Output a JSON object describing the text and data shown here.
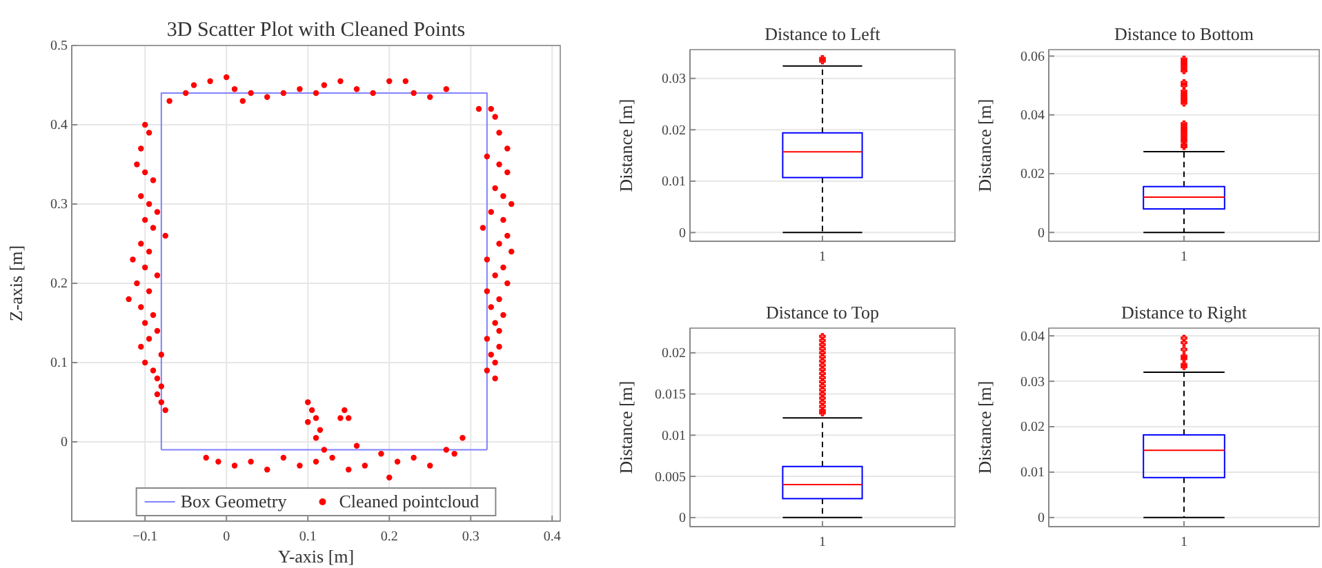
{
  "chart_data": [
    {
      "type": "scatter",
      "title": "3D Scatter Plot with Cleaned Points",
      "xlabel": "Y-axis [m]",
      "ylabel": "Z-axis [m]",
      "xlim": [
        -0.19,
        0.41
      ],
      "xticks": [
        {
          "value": -0.1,
          "label": "−0.1"
        },
        0,
        0.1,
        0.2,
        0.3,
        0.4
      ],
      "ylim": [
        -0.1,
        0.5
      ],
      "yticks": [
        0,
        0.1,
        0.2,
        0.3,
        0.4,
        0.5
      ],
      "grid": true,
      "legend": "bottom",
      "series": [
        {
          "name": "Box Geometry",
          "type": "line",
          "color": "#8080ff",
          "line_style": "solid",
          "x": [
            -0.08,
            -0.08,
            0.32,
            0.32
          ],
          "values": [
            -0.01,
            0.44,
            0.44,
            -0.01
          ]
        },
        {
          "type": "line",
          "color": "#8080ff",
          "line_style": "solid",
          "x": [
            -0.08,
            0.32
          ],
          "values": [
            -0.01,
            -0.01
          ]
        },
        {
          "name": "Cleaned pointcloud",
          "color": "#ff0000",
          "marker": "circle",
          "x": [
            -0.1,
            -0.095,
            -0.105,
            -0.11,
            -0.1,
            -0.09,
            -0.105,
            -0.095,
            -0.085,
            -0.1,
            -0.09,
            -0.075,
            -0.105,
            -0.095,
            -0.115,
            -0.1,
            -0.085,
            -0.11,
            -0.095,
            -0.12,
            -0.105,
            -0.09,
            -0.1,
            -0.085,
            -0.095,
            -0.105,
            -0.08,
            -0.1,
            -0.09,
            -0.085,
            -0.08,
            -0.085,
            -0.08,
            -0.075,
            0.31,
            0.325,
            0.33,
            0.335,
            0.345,
            0.32,
            0.335,
            0.345,
            0.33,
            0.34,
            0.35,
            0.325,
            0.34,
            0.315,
            0.345,
            0.335,
            0.35,
            0.32,
            0.34,
            0.33,
            0.345,
            0.32,
            0.335,
            0.325,
            0.34,
            0.33,
            0.335,
            0.32,
            0.335,
            0.325,
            0.33,
            0.32,
            0.33,
            -0.07,
            -0.05,
            -0.04,
            -0.02,
            0,
            0.01,
            0.03,
            0.05,
            0.07,
            0.09,
            0.11,
            0.12,
            0.14,
            0.16,
            0.18,
            0.2,
            0.22,
            0.23,
            0.25,
            0.27,
            0.02,
            -0.025,
            -0.01,
            0.01,
            0.03,
            0.05,
            0.07,
            0.09,
            0.11,
            0.13,
            0.15,
            0.17,
            0.19,
            0.2,
            0.21,
            0.23,
            0.25,
            0.27,
            0.29,
            0.28,
            0.16,
            0.12,
            0.1,
            0.105,
            0.11,
            0.1,
            0.115,
            0.14,
            0.145,
            0.15,
            0.11
          ],
          "values": [
            0.4,
            0.39,
            0.37,
            0.35,
            0.34,
            0.33,
            0.31,
            0.3,
            0.29,
            0.28,
            0.27,
            0.26,
            0.25,
            0.24,
            0.23,
            0.22,
            0.21,
            0.2,
            0.19,
            0.18,
            0.17,
            0.16,
            0.15,
            0.14,
            0.13,
            0.12,
            0.11,
            0.1,
            0.09,
            0.08,
            0.07,
            0.06,
            0.05,
            0.04,
            0.42,
            0.42,
            0.41,
            0.39,
            0.37,
            0.36,
            0.35,
            0.34,
            0.32,
            0.31,
            0.3,
            0.29,
            0.28,
            0.27,
            0.26,
            0.25,
            0.24,
            0.23,
            0.22,
            0.21,
            0.2,
            0.19,
            0.18,
            0.17,
            0.16,
            0.15,
            0.14,
            0.13,
            0.12,
            0.11,
            0.1,
            0.09,
            0.08,
            0.43,
            0.44,
            0.45,
            0.455,
            0.46,
            0.445,
            0.44,
            0.435,
            0.44,
            0.445,
            0.44,
            0.45,
            0.455,
            0.445,
            0.44,
            0.455,
            0.455,
            0.44,
            0.435,
            0.445,
            0.43,
            -0.02,
            -0.025,
            -0.03,
            -0.025,
            -0.035,
            -0.02,
            -0.03,
            -0.025,
            -0.02,
            -0.035,
            -0.03,
            -0.015,
            -0.045,
            -0.025,
            -0.02,
            -0.03,
            -0.01,
            0.005,
            -0.015,
            -0.005,
            -0.01,
            0.05,
            0.04,
            0.03,
            0.025,
            0.015,
            0.03,
            0.04,
            0.03,
            0.005
          ]
        }
      ]
    },
    {
      "type": "box",
      "title": "Distance to Left",
      "ylabel": "Distance [m]",
      "categories": [
        "1"
      ],
      "ylim": [
        -0.0017,
        0.0356
      ],
      "yticks": [
        0,
        0.01,
        0.02,
        0.03
      ],
      "grid": "y",
      "series": [
        {
          "color": "#0000ff",
          "boxes": [
            {
              "low": 0,
              "q1": 0.0107,
              "median": 0.0157,
              "q3": 0.0194,
              "high": 0.0324,
              "outliers": [
                0.0334,
                0.0339
              ]
            }
          ]
        }
      ]
    },
    {
      "type": "box",
      "title": "Distance to Bottom",
      "ylabel": "Distance [m]",
      "categories": [
        "1"
      ],
      "ylim": [
        -0.003,
        0.0622
      ],
      "yticks": [
        0,
        0.02,
        0.04,
        0.06
      ],
      "grid": "y",
      "series": [
        {
          "color": "#0000ff",
          "boxes": [
            {
              "low": 0,
              "q1": 0.008,
              "median": 0.012,
              "q3": 0.0156,
              "high": 0.0275,
              "outliers": [
                0.0292,
                0.0298,
                0.031,
                0.032,
                0.033,
                0.034,
                0.035,
                0.036,
                0.037,
                0.044,
                0.045,
                0.046,
                0.047,
                0.048,
                0.05,
                0.051,
                0.055,
                0.056,
                0.057,
                0.058,
                0.059
              ]
            }
          ]
        }
      ]
    },
    {
      "type": "box",
      "title": "Distance to Top",
      "ylabel": "Distance [m]",
      "categories": [
        "1"
      ],
      "ylim": [
        -0.0011,
        0.023
      ],
      "yticks": [
        0,
        0.005,
        0.01,
        0.015,
        0.02
      ],
      "grid": "y",
      "series": [
        {
          "color": "#0000ff",
          "boxes": [
            {
              "low": 0,
              "q1": 0.0023,
              "median": 0.004,
              "q3": 0.0062,
              "high": 0.0121,
              "outliers": [
                0.0127,
                0.013,
                0.0135,
                0.014,
                0.0145,
                0.015,
                0.0155,
                0.016,
                0.0165,
                0.017,
                0.0175,
                0.018,
                0.0185,
                0.019,
                0.0195,
                0.02,
                0.0205,
                0.021,
                0.0215,
                0.022
              ]
            }
          ]
        }
      ]
    },
    {
      "type": "box",
      "title": "Distance to Right",
      "ylabel": "Distance [m]",
      "categories": [
        "1"
      ],
      "ylim": [
        -0.002,
        0.0417
      ],
      "yticks": [
        0,
        0.01,
        0.02,
        0.03,
        0.04
      ],
      "grid": "y",
      "series": [
        {
          "color": "#0000ff",
          "boxes": [
            {
              "low": 0,
              "q1": 0.0088,
              "median": 0.0148,
              "q3": 0.0182,
              "high": 0.032,
              "outliers": [
                0.0332,
                0.0337,
                0.035,
                0.0355,
                0.037,
                0.0385,
                0.0395
              ]
            }
          ]
        }
      ]
    }
  ]
}
